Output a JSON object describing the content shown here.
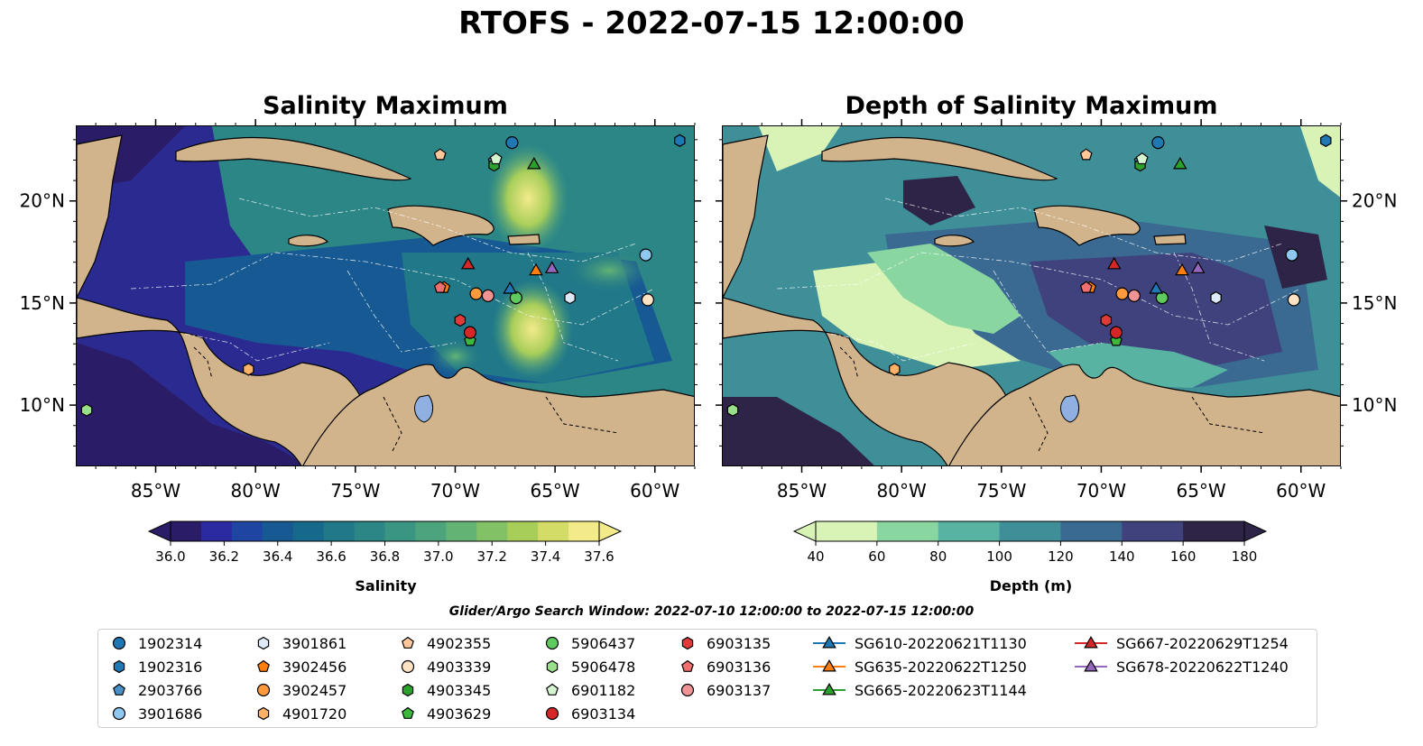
{
  "figure": {
    "title": "RTOFS - 2022-07-15 12:00:00",
    "search_window": "Glider/Argo Search Window: 2022-07-10 12:00:00 to 2022-07-15 12:00:00"
  },
  "maps": [
    {
      "title": "Salinity Maximum",
      "colorbar": {
        "label": "Salinity",
        "ticks": [
          "36.0",
          "36.2",
          "36.4",
          "36.6",
          "36.8",
          "37.0",
          "37.2",
          "37.4",
          "37.6"
        ],
        "colors": [
          "#2a1c66",
          "#2b2aa0",
          "#1f45a3",
          "#175a93",
          "#17698c",
          "#217888",
          "#2c8686",
          "#3b9583",
          "#4ca47d",
          "#63b374",
          "#83c166",
          "#a8ce5a",
          "#d2dc66",
          "#f3ea8a"
        ]
      }
    },
    {
      "title": "Depth of Salinity Maximum",
      "colorbar": {
        "label": "Depth (m)",
        "ticks": [
          "40",
          "60",
          "80",
          "100",
          "120",
          "140",
          "160",
          "180"
        ],
        "colors": [
          "#d9f2b5",
          "#8ad6a0",
          "#58b3a2",
          "#3f8f99",
          "#3a6a91",
          "#40427d",
          "#2e2447"
        ]
      }
    }
  ],
  "axes": {
    "lon_labels": [
      "85°W",
      "80°W",
      "75°W",
      "70°W",
      "65°W",
      "60°W"
    ],
    "lat_labels": [
      "20°N",
      "15°N",
      "10°N"
    ]
  },
  "legend": [
    {
      "label": "1902314",
      "marker": "circle",
      "color": "#1f77b4"
    },
    {
      "label": "1902316",
      "marker": "hexagon",
      "color": "#1f77b4"
    },
    {
      "label": "2903766",
      "marker": "pentagon",
      "color": "#4a90c8"
    },
    {
      "label": "3901686",
      "marker": "circle",
      "color": "#8ec7ef"
    },
    {
      "label": "3901861",
      "marker": "hexagon",
      "color": "#dcebf7"
    },
    {
      "label": "3902456",
      "marker": "pentagon",
      "color": "#ff7f0e"
    },
    {
      "label": "3902457",
      "marker": "circle",
      "color": "#ff9a3c"
    },
    {
      "label": "4901720",
      "marker": "hexagon",
      "color": "#ffb266"
    },
    {
      "label": "4902355",
      "marker": "pentagon",
      "color": "#ffc79a"
    },
    {
      "label": "4903339",
      "marker": "circle",
      "color": "#ffe1c4"
    },
    {
      "label": "4903345",
      "marker": "hexagon",
      "color": "#2ca02c"
    },
    {
      "label": "4903629",
      "marker": "pentagon",
      "color": "#3cb83c"
    },
    {
      "label": "5906437",
      "marker": "circle",
      "color": "#5fcb5f"
    },
    {
      "label": "5906478",
      "marker": "hexagon",
      "color": "#98df8a"
    },
    {
      "label": "6901182",
      "marker": "pentagon",
      "color": "#d5f5d0"
    },
    {
      "label": "6903134",
      "marker": "circle",
      "color": "#d62728"
    },
    {
      "label": "6903135",
      "marker": "hexagon",
      "color": "#e03b3b"
    },
    {
      "label": "6903136",
      "marker": "pentagon",
      "color": "#ef6f70"
    },
    {
      "label": "6903137",
      "marker": "circle",
      "color": "#f09394"
    },
    {
      "label": "SG610-20220621T1130",
      "marker": "triangle-line",
      "color": "#1f77b4"
    },
    {
      "label": "SG635-20220622T1250",
      "marker": "triangle-line",
      "color": "#ff7f0e"
    },
    {
      "label": "SG665-20220623T1144",
      "marker": "triangle-line",
      "color": "#2ca02c"
    },
    {
      "label": "SG667-20220629T1254",
      "marker": "triangle-line",
      "color": "#d62728"
    },
    {
      "label": "SG678-20220622T1240",
      "marker": "triangle-line",
      "color": "#9467bd"
    }
  ],
  "observations": [
    {
      "id": "1902314",
      "lon": -67.2,
      "lat": 22.9
    },
    {
      "id": "1902316",
      "lon": -58.8,
      "lat": 23.0
    },
    {
      "id": "2903766",
      "lon": -68.1,
      "lat": 22.0
    },
    {
      "id": "3901686",
      "lon": -60.5,
      "lat": 17.4
    },
    {
      "id": "3901861",
      "lon": -64.3,
      "lat": 15.3
    },
    {
      "id": "3902456",
      "lon": -70.6,
      "lat": 15.8
    },
    {
      "id": "3902457",
      "lon": -69.0,
      "lat": 15.5
    },
    {
      "id": "4901720",
      "lon": -80.4,
      "lat": 11.8
    },
    {
      "id": "4902355",
      "lon": -70.8,
      "lat": 22.3
    },
    {
      "id": "4903339",
      "lon": -60.4,
      "lat": 15.2
    },
    {
      "id": "4903345",
      "lon": -68.1,
      "lat": 21.8
    },
    {
      "id": "4903629",
      "lon": -69.3,
      "lat": 13.2
    },
    {
      "id": "5906437",
      "lon": -67.0,
      "lat": 15.3
    },
    {
      "id": "5906478",
      "lon": -88.5,
      "lat": 9.8
    },
    {
      "id": "6901182",
      "lon": -68.0,
      "lat": 22.1
    },
    {
      "id": "6903134",
      "lon": -69.3,
      "lat": 13.6
    },
    {
      "id": "6903135",
      "lon": -69.8,
      "lat": 14.2
    },
    {
      "id": "6903136",
      "lon": -70.8,
      "lat": 15.8
    },
    {
      "id": "6903137",
      "lon": -68.4,
      "lat": 15.4
    },
    {
      "id": "SG610-20220621T1130",
      "lon": -67.3,
      "lat": 15.7
    },
    {
      "id": "SG635-20220622T1250",
      "lon": -66.0,
      "lat": 16.6
    },
    {
      "id": "SG665-20220623T1144",
      "lon": -66.1,
      "lat": 21.8
    },
    {
      "id": "SG667-20220629T1254",
      "lon": -69.4,
      "lat": 16.9
    },
    {
      "id": "SG678-20220622T1240",
      "lon": -65.2,
      "lat": 16.7
    }
  ]
}
